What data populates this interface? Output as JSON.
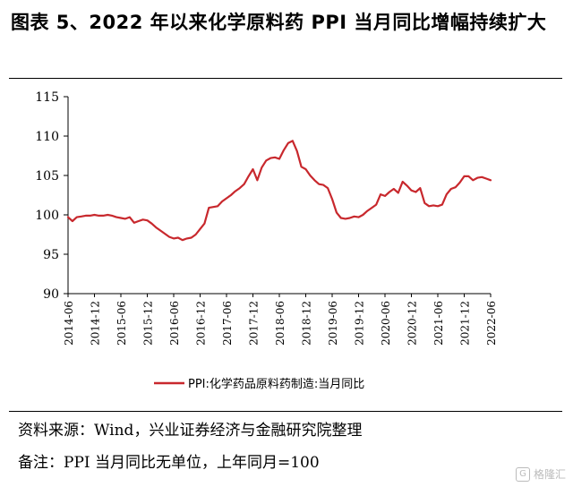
{
  "header": {
    "title": "图表 5、2022 年以来化学原料药 PPI 当月同比增幅持续扩大"
  },
  "footer": {
    "source": "资料来源：Wind，兴业证券经济与金融研究院整理",
    "note": "备注：PPI 当月同比无单位，上年同月=100"
  },
  "watermark": {
    "badge": "G",
    "text": "格隆汇"
  },
  "chart_data": {
    "type": "line",
    "title": "",
    "xlabel": "",
    "ylabel": "",
    "ylim": [
      90,
      115
    ],
    "yticks": [
      90,
      95,
      100,
      105,
      110,
      115
    ],
    "xticks": [
      "2014-06",
      "2014-12",
      "2015-06",
      "2015-12",
      "2016-06",
      "2016-12",
      "2017-06",
      "2017-12",
      "2018-06",
      "2018-12",
      "2019-06",
      "2019-12",
      "2020-06",
      "2020-12",
      "2021-06",
      "2021-12",
      "2022-06"
    ],
    "grid": false,
    "legend_position": "bottom",
    "colors": {
      "line": "#c8282d",
      "axis": "#000000"
    },
    "series": [
      {
        "name": "PPI:化学药品原料药制造:当月同比",
        "x": [
          "2014-06",
          "2014-07",
          "2014-08",
          "2014-09",
          "2014-10",
          "2014-11",
          "2014-12",
          "2015-01",
          "2015-02",
          "2015-03",
          "2015-04",
          "2015-05",
          "2015-06",
          "2015-07",
          "2015-08",
          "2015-09",
          "2015-10",
          "2015-11",
          "2015-12",
          "2016-01",
          "2016-02",
          "2016-03",
          "2016-04",
          "2016-05",
          "2016-06",
          "2016-07",
          "2016-08",
          "2016-09",
          "2016-10",
          "2016-11",
          "2016-12",
          "2017-01",
          "2017-02",
          "2017-03",
          "2017-04",
          "2017-05",
          "2017-06",
          "2017-07",
          "2017-08",
          "2017-09",
          "2017-10",
          "2017-11",
          "2017-12",
          "2018-01",
          "2018-02",
          "2018-03",
          "2018-04",
          "2018-05",
          "2018-06",
          "2018-07",
          "2018-08",
          "2018-09",
          "2018-10",
          "2018-11",
          "2018-12",
          "2019-01",
          "2019-02",
          "2019-03",
          "2019-04",
          "2019-05",
          "2019-06",
          "2019-07",
          "2019-08",
          "2019-09",
          "2019-10",
          "2019-11",
          "2019-12",
          "2020-01",
          "2020-02",
          "2020-03",
          "2020-04",
          "2020-05",
          "2020-06",
          "2020-07",
          "2020-08",
          "2020-09",
          "2020-10",
          "2020-11",
          "2020-12",
          "2021-01",
          "2021-02",
          "2021-03",
          "2021-04",
          "2021-05",
          "2021-06",
          "2021-07",
          "2021-08",
          "2021-09",
          "2021-10",
          "2021-11",
          "2021-12",
          "2022-01",
          "2022-02",
          "2022-03",
          "2022-04",
          "2022-05",
          "2022-06"
        ],
        "values": [
          99.7,
          99.2,
          99.7,
          99.8,
          99.9,
          99.9,
          100.0,
          99.9,
          99.9,
          100.0,
          99.9,
          99.7,
          99.6,
          99.5,
          99.7,
          99.0,
          99.2,
          99.4,
          99.3,
          98.9,
          98.4,
          98.0,
          97.6,
          97.2,
          97.0,
          97.1,
          96.8,
          97.0,
          97.1,
          97.5,
          98.2,
          98.9,
          100.9,
          101.0,
          101.1,
          101.7,
          102.1,
          102.5,
          103.0,
          103.4,
          103.9,
          104.9,
          105.8,
          104.4,
          106.0,
          106.9,
          107.2,
          107.3,
          107.1,
          108.2,
          109.1,
          109.4,
          108.1,
          106.1,
          105.8,
          105.0,
          104.4,
          103.9,
          103.8,
          103.4,
          102.0,
          100.3,
          99.6,
          99.5,
          99.6,
          99.8,
          99.7,
          100.0,
          100.5,
          100.9,
          101.3,
          102.6,
          102.4,
          102.9,
          103.3,
          102.8,
          104.2,
          103.7,
          103.1,
          102.9,
          103.4,
          101.5,
          101.1,
          101.2,
          101.1,
          101.3,
          102.6,
          103.3,
          103.5,
          104.1,
          104.9,
          104.9,
          104.4,
          104.7,
          104.8,
          104.6,
          104.4
        ]
      }
    ]
  }
}
